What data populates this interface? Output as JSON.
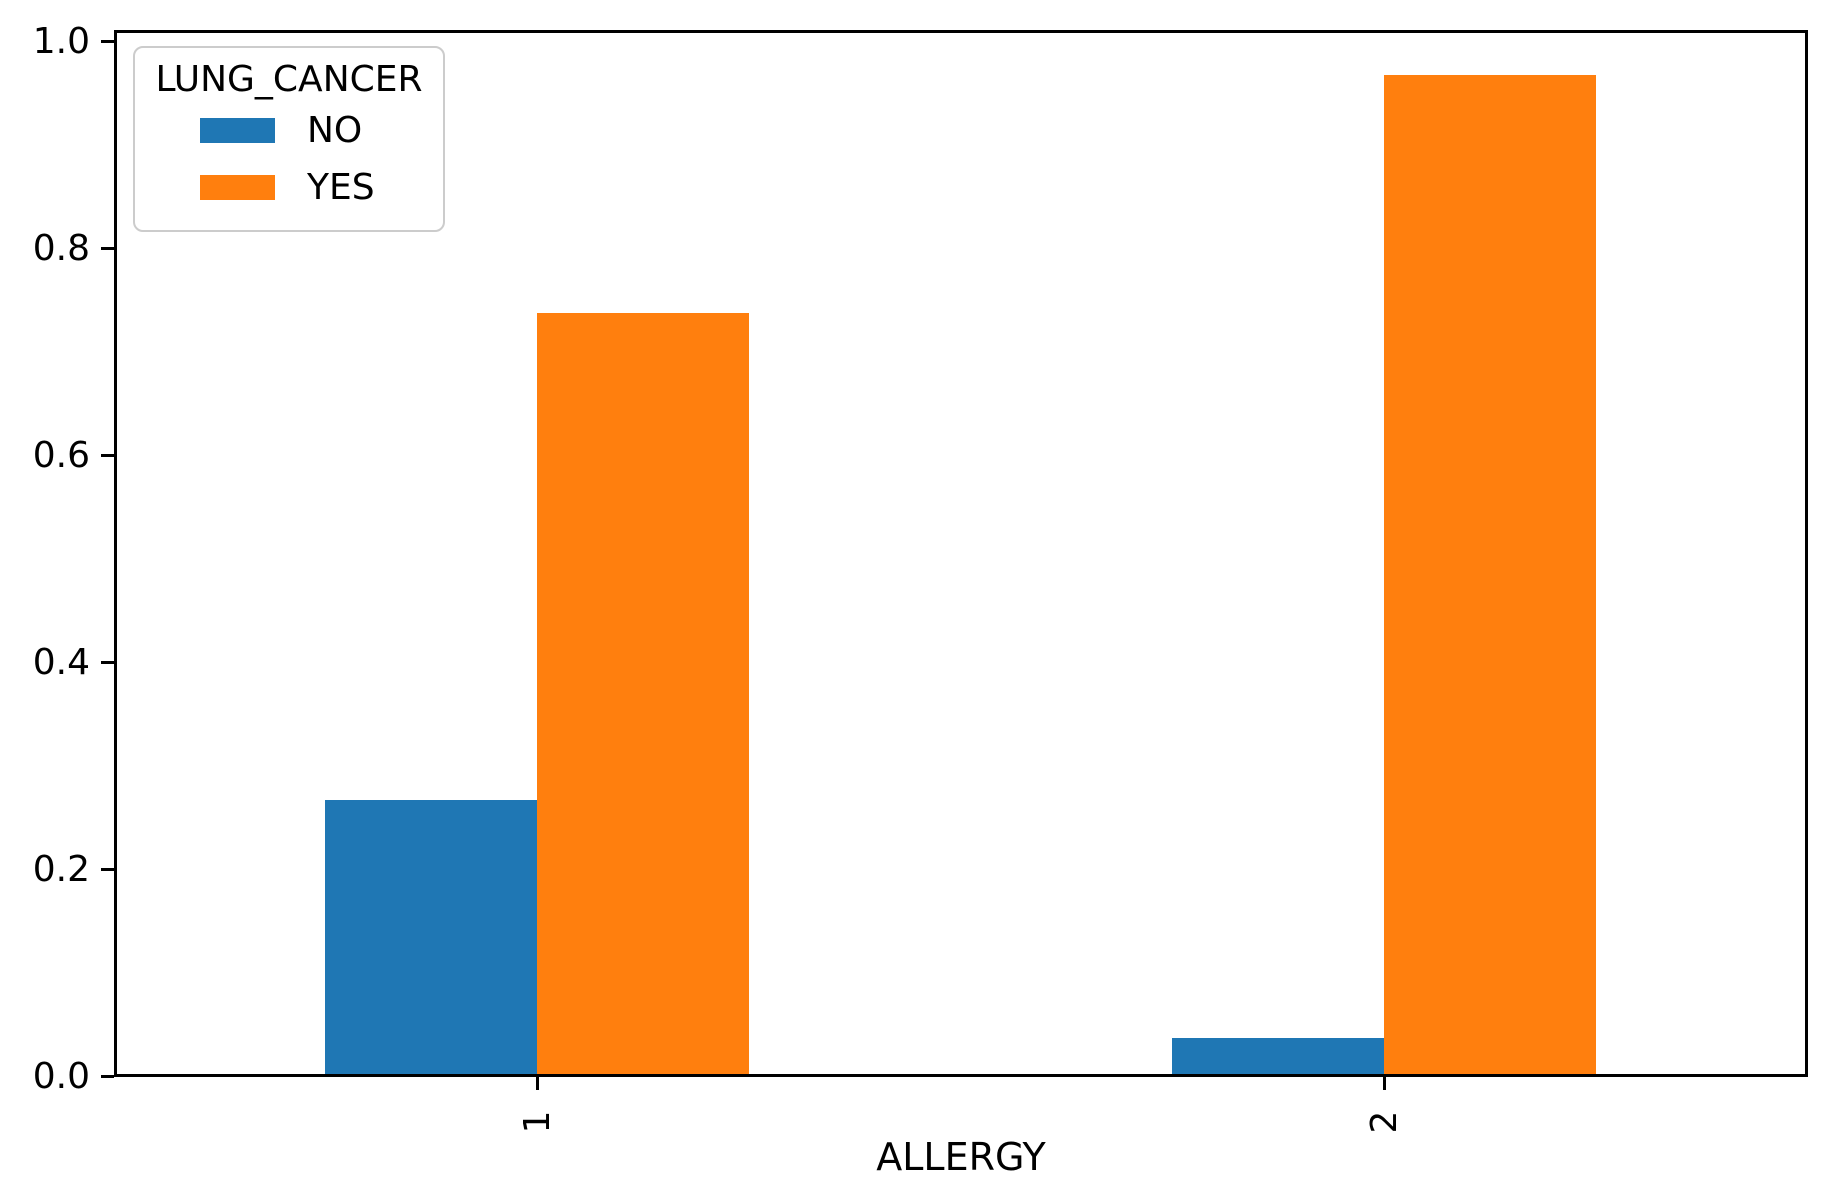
{
  "figure": {
    "background": "#ffffff"
  },
  "chart_data": {
    "type": "bar",
    "title": "",
    "xlabel": "ALLERGY",
    "ylabel": "",
    "categories": [
      "1",
      "2"
    ],
    "legend": {
      "title": "LUNG_CANCER",
      "position": "upper left"
    },
    "series": [
      {
        "name": "NO",
        "color": "#1f77b4",
        "values": [
          0.265,
          0.035
        ]
      },
      {
        "name": "YES",
        "color": "#ff7f0e",
        "values": [
          0.735,
          0.965
        ]
      }
    ],
    "ylim": [
      0,
      1.012
    ],
    "yticks": [
      0.0,
      0.2,
      0.4,
      0.6,
      0.8,
      1.0
    ],
    "ytick_labels": [
      "0.0",
      "0.2",
      "0.4",
      "0.6",
      "0.8",
      "1.0"
    ],
    "xtick_rotation": 90,
    "grid": false,
    "bar_group_width_fraction": 0.5
  }
}
